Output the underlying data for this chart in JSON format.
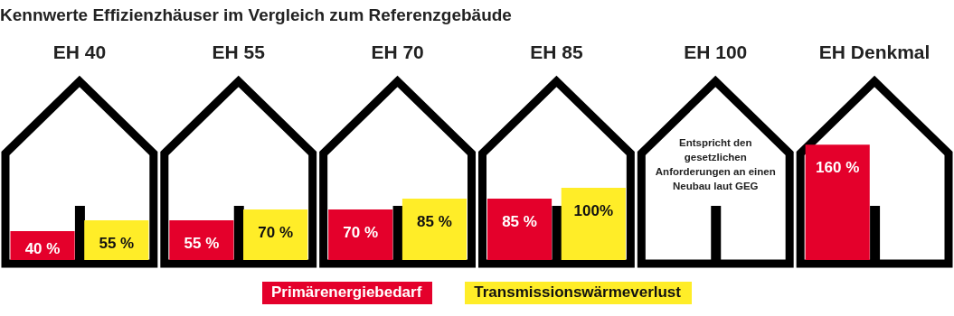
{
  "chart_data": {
    "type": "bar",
    "title": "Kennwerte Effizienzhäuser im Vergleich zum Referenzgebäude",
    "categories": [
      "EH 40",
      "EH 55",
      "EH 70",
      "EH 85",
      "EH 100",
      "EH Denkmal"
    ],
    "series": [
      {
        "name": "Primärenergiebedarf",
        "color": "#e4002b",
        "values": [
          40,
          55,
          70,
          85,
          null,
          160
        ],
        "value_labels": [
          "40 %",
          "55 %",
          "70 %",
          "85 %",
          null,
          "160 %"
        ]
      },
      {
        "name": "Transmissionswärmeverlust",
        "color": "#ffed28",
        "values": [
          55,
          70,
          85,
          100,
          null,
          null
        ],
        "value_labels": [
          "55 %",
          "70 %",
          "85 %",
          "100%",
          null,
          null
        ]
      }
    ],
    "annotations": [
      "Entspricht den gesetzlichen Anforderungen an einen Neubau laut GEG"
    ],
    "grid": false,
    "legend": "bottom"
  }
}
